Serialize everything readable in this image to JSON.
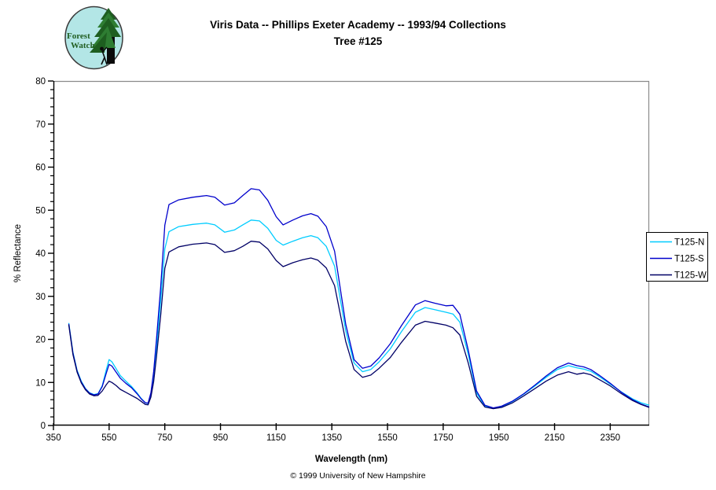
{
  "header": {
    "logo": {
      "line1": "Forest",
      "line2": "Watch"
    },
    "title_line1": "Viris Data -- Phillips Exeter Academy -- 1993/94 Collections",
    "title_line2": "Tree #125"
  },
  "footer": {
    "copyright": "© 1999 University of New Hampshire"
  },
  "chart_data": {
    "type": "line",
    "title": "Viris Data -- Phillips Exeter Academy -- 1993/94 Collections — Tree #125",
    "xlabel": "Wavelength (nm)",
    "ylabel": "% Reflectance",
    "xlim": [
      350,
      2490
    ],
    "ylim": [
      0,
      80
    ],
    "x_ticks": [
      350,
      550,
      750,
      950,
      1150,
      1350,
      1550,
      1750,
      1950,
      2150,
      2350
    ],
    "y_ticks": [
      0,
      10,
      20,
      30,
      40,
      50,
      60,
      70,
      80
    ],
    "y_minor_step": 2,
    "grid": false,
    "legend_position": "right",
    "axis_color": "#000000",
    "border_color": "#8A8A8A",
    "x": [
      405,
      420,
      435,
      450,
      465,
      480,
      495,
      510,
      525,
      540,
      550,
      560,
      575,
      590,
      610,
      630,
      650,
      665,
      680,
      690,
      700,
      710,
      720,
      735,
      750,
      765,
      800,
      850,
      900,
      930,
      965,
      1000,
      1030,
      1060,
      1090,
      1120,
      1150,
      1175,
      1210,
      1245,
      1275,
      1300,
      1330,
      1360,
      1400,
      1430,
      1460,
      1490,
      1520,
      1560,
      1600,
      1650,
      1685,
      1720,
      1760,
      1785,
      1810,
      1840,
      1870,
      1900,
      1930,
      1960,
      2000,
      2040,
      2080,
      2120,
      2160,
      2200,
      2230,
      2255,
      2280,
      2310,
      2350,
      2390,
      2430,
      2460,
      2490
    ],
    "series": [
      {
        "name": "T125-N",
        "color": "#00CCFF",
        "values": [
          23.8,
          17.0,
          12.8,
          10.3,
          8.6,
          7.6,
          7.2,
          7.4,
          9.2,
          13.0,
          15.3,
          14.8,
          13.2,
          11.6,
          10.3,
          9.1,
          7.6,
          6.3,
          5.3,
          5.1,
          7.2,
          11.5,
          18.0,
          29.0,
          41.0,
          45.0,
          46.2,
          46.7,
          47.0,
          46.6,
          44.9,
          45.4,
          46.6,
          47.7,
          47.5,
          45.8,
          43.0,
          41.9,
          42.8,
          43.6,
          44.1,
          43.6,
          41.6,
          37.0,
          22.0,
          14.5,
          12.5,
          13.0,
          14.8,
          17.8,
          21.8,
          26.3,
          27.4,
          26.9,
          26.3,
          25.9,
          24.0,
          16.5,
          7.5,
          4.5,
          4.0,
          4.4,
          5.6,
          7.3,
          9.2,
          11.2,
          13.0,
          13.9,
          13.4,
          13.1,
          12.6,
          11.4,
          9.6,
          7.8,
          6.2,
          5.3,
          4.7
        ]
      },
      {
        "name": "T125-S",
        "color": "#0000CC",
        "values": [
          23.6,
          16.8,
          12.6,
          10.1,
          8.5,
          7.5,
          7.1,
          7.3,
          9.0,
          12.2,
          14.2,
          13.8,
          12.4,
          11.0,
          9.8,
          8.8,
          7.4,
          6.2,
          5.3,
          5.2,
          7.6,
          12.5,
          20.0,
          32.0,
          46.5,
          51.3,
          52.4,
          53.0,
          53.4,
          53.0,
          51.2,
          51.7,
          53.4,
          55.0,
          54.7,
          52.3,
          48.5,
          46.6,
          47.7,
          48.7,
          49.2,
          48.6,
          46.2,
          40.5,
          23.5,
          15.3,
          13.3,
          13.8,
          15.7,
          19.0,
          23.2,
          28.0,
          29.0,
          28.4,
          27.8,
          27.9,
          25.8,
          17.5,
          8.0,
          4.7,
          4.1,
          4.5,
          5.7,
          7.4,
          9.4,
          11.5,
          13.4,
          14.5,
          13.9,
          13.6,
          13.0,
          11.7,
          9.8,
          7.7,
          6.0,
          5.0,
          4.3
        ]
      },
      {
        "name": "T125-W",
        "color": "#000066",
        "values": [
          23.4,
          16.5,
          12.4,
          9.9,
          8.3,
          7.3,
          6.9,
          7.0,
          8.0,
          9.5,
          10.3,
          10.0,
          9.3,
          8.4,
          7.7,
          7.0,
          6.3,
          5.6,
          4.9,
          4.8,
          6.6,
          10.2,
          16.0,
          25.5,
          36.5,
          40.3,
          41.5,
          42.1,
          42.4,
          42.0,
          40.2,
          40.6,
          41.6,
          42.8,
          42.6,
          41.0,
          38.3,
          36.9,
          37.8,
          38.5,
          38.9,
          38.4,
          36.6,
          32.5,
          19.5,
          13.0,
          11.2,
          11.7,
          13.3,
          15.8,
          19.3,
          23.3,
          24.2,
          23.8,
          23.3,
          22.7,
          21.0,
          14.5,
          6.8,
          4.3,
          3.9,
          4.2,
          5.3,
          6.9,
          8.6,
          10.3,
          11.7,
          12.5,
          11.9,
          12.2,
          11.8,
          10.7,
          9.2,
          7.4,
          5.8,
          4.9,
          4.2
        ]
      }
    ]
  }
}
